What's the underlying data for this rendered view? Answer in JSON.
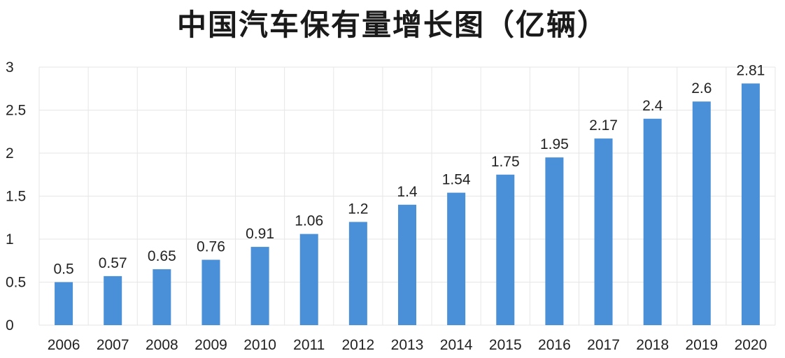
{
  "title": "中国汽车保有量增长图（亿辆）",
  "colors": {
    "bar": "#4a90d9",
    "grid": "#e6e6e6",
    "background": "#ffffff",
    "text": "#222222"
  },
  "chart_data": {
    "type": "bar",
    "title": "中国汽车保有量增长图（亿辆）",
    "xlabel": "",
    "ylabel": "",
    "categories": [
      "2006",
      "2007",
      "2008",
      "2009",
      "2010",
      "2011",
      "2012",
      "2013",
      "2014",
      "2015",
      "2016",
      "2017",
      "2018",
      "2019",
      "2020"
    ],
    "values": [
      0.5,
      0.57,
      0.65,
      0.76,
      0.91,
      1.06,
      1.2,
      1.4,
      1.54,
      1.75,
      1.95,
      2.17,
      2.4,
      2.6,
      2.81
    ],
    "data_labels": [
      "0.5",
      "0.57",
      "0.65",
      "0.76",
      "0.91",
      "1.06",
      "1.2",
      "1.4",
      "1.54",
      "1.75",
      "1.95",
      "2.17",
      "2.4",
      "2.6",
      "2.81"
    ],
    "ylim": [
      0,
      3
    ],
    "yticks": [
      0,
      0.5,
      1,
      1.5,
      2,
      2.5,
      3
    ],
    "ytick_labels": [
      "0",
      "0.5",
      "1",
      "1.5",
      "2",
      "2.5",
      "3"
    ],
    "grid": true,
    "legend": false
  }
}
